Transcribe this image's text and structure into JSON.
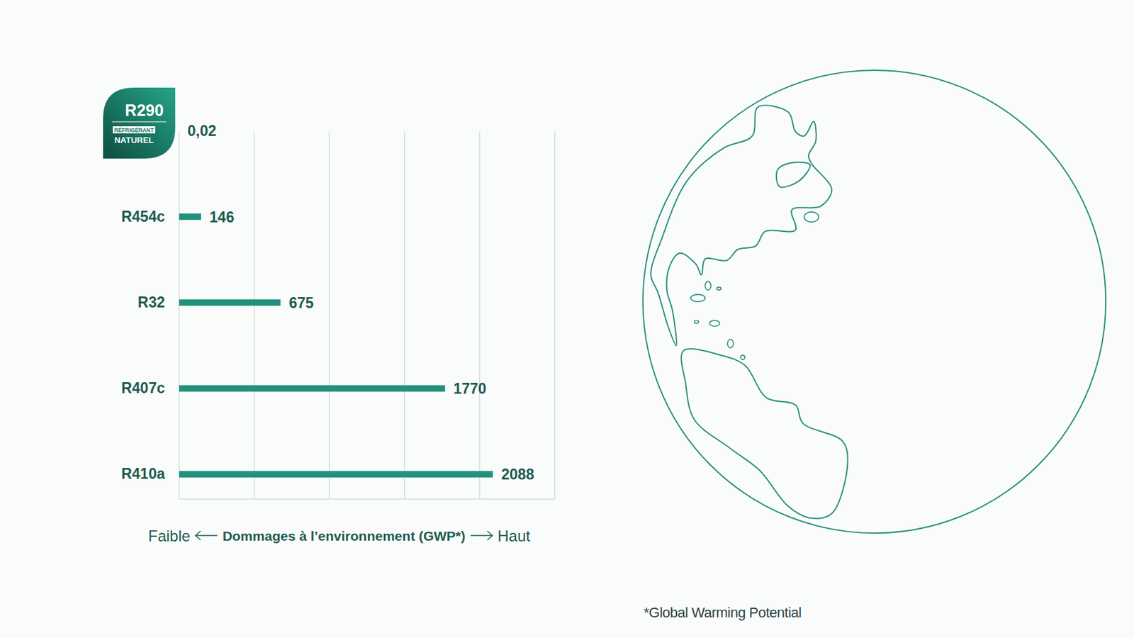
{
  "chart_data": {
    "type": "bar",
    "orientation": "horizontal",
    "categories": [
      "R290",
      "R454c",
      "R32",
      "R407c",
      "R410a"
    ],
    "values": [
      0.02,
      146,
      675,
      1770,
      2088
    ],
    "value_labels": [
      "0,02",
      "146",
      "675",
      "1770",
      "2088"
    ],
    "data_labels": true,
    "color": "#21907c",
    "xlabel": "Dommages à l’environnement (GWP*)",
    "xlim": [
      0,
      2500
    ],
    "xticks": [
      0,
      500,
      1000,
      1500,
      2000,
      2500
    ],
    "grid": true,
    "tick_labels": "y",
    "annotations": [
      "RÉFRIGÉRANT",
      "NATUREL",
      "Faible",
      "Haut",
      "*Global Warming Potential"
    ]
  }
}
